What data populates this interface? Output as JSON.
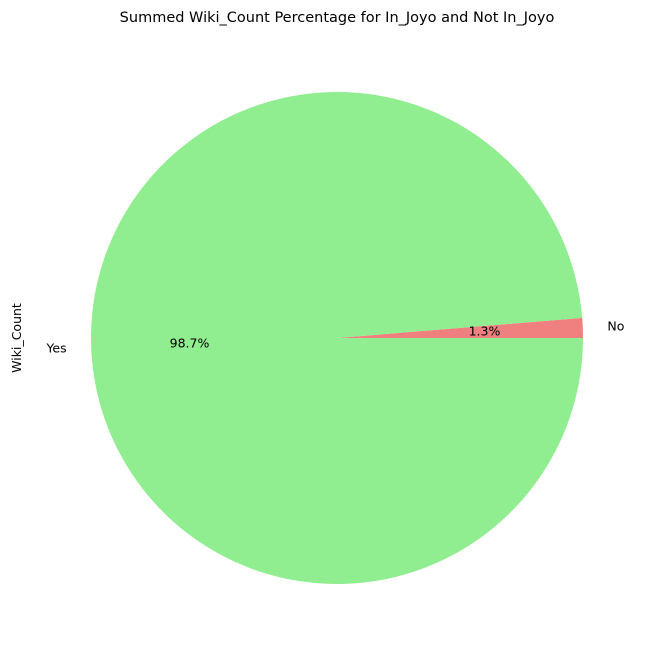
{
  "chart_data": {
    "type": "pie",
    "title": "Summed Wiki_Count Percentage for In_Joyo and Not In_Joyo",
    "ylabel": "Wiki_Count",
    "slices": [
      {
        "label": "No",
        "percent": 1.3,
        "pct_text": "1.3%",
        "color": "#f08080"
      },
      {
        "label": "Yes",
        "percent": 98.7,
        "pct_text": "98.7%",
        "color": "#90ee90"
      }
    ],
    "legend": "none",
    "grid": false
  }
}
